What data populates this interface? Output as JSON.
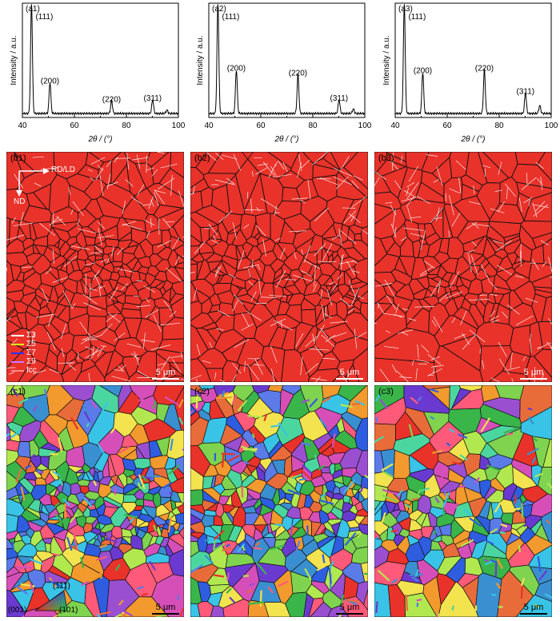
{
  "xrd_panels": [
    {
      "label": "(a1)",
      "peaks": [
        {
          "x": 43.5,
          "h": 0.96,
          "label": "(111)"
        },
        {
          "x": 50.6,
          "h": 0.27,
          "label": "(200)"
        },
        {
          "x": 74.3,
          "h": 0.11,
          "label": "(220)"
        },
        {
          "x": 90.1,
          "h": 0.12,
          "label": "(311)"
        },
        {
          "x": 95.6,
          "h": 0.03,
          "label": ""
        }
      ]
    },
    {
      "label": "(a2)",
      "peaks": [
        {
          "x": 43.5,
          "h": 0.96,
          "label": "(111)"
        },
        {
          "x": 50.6,
          "h": 0.38,
          "label": "(200)"
        },
        {
          "x": 74.3,
          "h": 0.34,
          "label": "(220)"
        },
        {
          "x": 90.1,
          "h": 0.12,
          "label": "(311)"
        },
        {
          "x": 95.6,
          "h": 0.04,
          "label": ""
        }
      ]
    },
    {
      "label": "(a3)",
      "peaks": [
        {
          "x": 43.5,
          "h": 0.96,
          "label": "(111)"
        },
        {
          "x": 50.6,
          "h": 0.36,
          "label": "(200)"
        },
        {
          "x": 74.3,
          "h": 0.38,
          "label": "(220)"
        },
        {
          "x": 90.1,
          "h": 0.18,
          "label": "(311)"
        },
        {
          "x": 95.6,
          "h": 0.07,
          "label": ""
        }
      ]
    }
  ],
  "chart_data": {
    "type": "line",
    "xlabel": "2θ / (°)",
    "ylabel": "Intensity / a.u.",
    "xlim": [
      40,
      100
    ],
    "xticks": [
      "40",
      "60",
      "80",
      "100"
    ]
  },
  "band_panels": [
    {
      "label": "(b1)",
      "scale": "5 μm"
    },
    {
      "label": "(b2)",
      "scale": "5 μm"
    },
    {
      "label": "(b3)",
      "scale": "5 μm"
    }
  ],
  "ipf_panels": [
    {
      "label": "(c1)",
      "scale": "5 μm"
    },
    {
      "label": "(c2)",
      "scale": "5 μm"
    },
    {
      "label": "(c3)",
      "scale": "5 μm"
    }
  ],
  "orientation": {
    "rd": "RD/LD",
    "nd": "ND"
  },
  "legend": [
    {
      "label": "Σ3",
      "color": "#ffffff"
    },
    {
      "label": "Σ5",
      "color": "#d9ff1a"
    },
    {
      "label": "Σ7",
      "color": "#2433ff"
    },
    {
      "label": "Σ9",
      "color": "#c77bff"
    },
    {
      "label": "fcc",
      "color": "#ff8c8c"
    }
  ],
  "ipf_key": {
    "top": "(111)",
    "left": "(001)",
    "right": "(101)"
  },
  "colors": {
    "matrix": "#e8322a",
    "boundary": "#111111",
    "twin": "#ffffff"
  }
}
